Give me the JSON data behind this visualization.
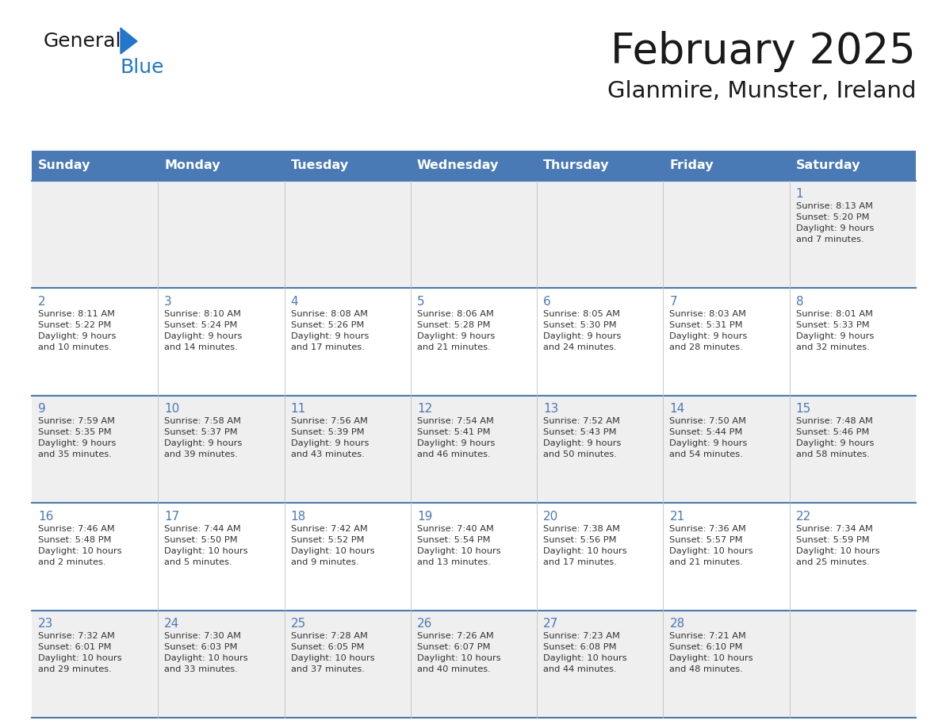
{
  "title": "February 2025",
  "subtitle": "Glanmire, Munster, Ireland",
  "days_of_week": [
    "Sunday",
    "Monday",
    "Tuesday",
    "Wednesday",
    "Thursday",
    "Friday",
    "Saturday"
  ],
  "header_bg": "#4a7ab5",
  "header_text": "#ffffff",
  "row_bg_light": "#efefef",
  "row_bg_white": "#ffffff",
  "day_text_color": "#4a7ab5",
  "info_text_color": "#333333",
  "grid_line_color": "#4a7ab5",
  "title_color": "#1a1a1a",
  "subtitle_color": "#1a1a1a",
  "logo_general_color": "#1a1a1a",
  "logo_blue_color": "#2277cc",
  "calendar_data": [
    [
      {
        "day": null,
        "info": null
      },
      {
        "day": null,
        "info": null
      },
      {
        "day": null,
        "info": null
      },
      {
        "day": null,
        "info": null
      },
      {
        "day": null,
        "info": null
      },
      {
        "day": null,
        "info": null
      },
      {
        "day": 1,
        "info": "Sunrise: 8:13 AM\nSunset: 5:20 PM\nDaylight: 9 hours\nand 7 minutes."
      }
    ],
    [
      {
        "day": 2,
        "info": "Sunrise: 8:11 AM\nSunset: 5:22 PM\nDaylight: 9 hours\nand 10 minutes."
      },
      {
        "day": 3,
        "info": "Sunrise: 8:10 AM\nSunset: 5:24 PM\nDaylight: 9 hours\nand 14 minutes."
      },
      {
        "day": 4,
        "info": "Sunrise: 8:08 AM\nSunset: 5:26 PM\nDaylight: 9 hours\nand 17 minutes."
      },
      {
        "day": 5,
        "info": "Sunrise: 8:06 AM\nSunset: 5:28 PM\nDaylight: 9 hours\nand 21 minutes."
      },
      {
        "day": 6,
        "info": "Sunrise: 8:05 AM\nSunset: 5:30 PM\nDaylight: 9 hours\nand 24 minutes."
      },
      {
        "day": 7,
        "info": "Sunrise: 8:03 AM\nSunset: 5:31 PM\nDaylight: 9 hours\nand 28 minutes."
      },
      {
        "day": 8,
        "info": "Sunrise: 8:01 AM\nSunset: 5:33 PM\nDaylight: 9 hours\nand 32 minutes."
      }
    ],
    [
      {
        "day": 9,
        "info": "Sunrise: 7:59 AM\nSunset: 5:35 PM\nDaylight: 9 hours\nand 35 minutes."
      },
      {
        "day": 10,
        "info": "Sunrise: 7:58 AM\nSunset: 5:37 PM\nDaylight: 9 hours\nand 39 minutes."
      },
      {
        "day": 11,
        "info": "Sunrise: 7:56 AM\nSunset: 5:39 PM\nDaylight: 9 hours\nand 43 minutes."
      },
      {
        "day": 12,
        "info": "Sunrise: 7:54 AM\nSunset: 5:41 PM\nDaylight: 9 hours\nand 46 minutes."
      },
      {
        "day": 13,
        "info": "Sunrise: 7:52 AM\nSunset: 5:43 PM\nDaylight: 9 hours\nand 50 minutes."
      },
      {
        "day": 14,
        "info": "Sunrise: 7:50 AM\nSunset: 5:44 PM\nDaylight: 9 hours\nand 54 minutes."
      },
      {
        "day": 15,
        "info": "Sunrise: 7:48 AM\nSunset: 5:46 PM\nDaylight: 9 hours\nand 58 minutes."
      }
    ],
    [
      {
        "day": 16,
        "info": "Sunrise: 7:46 AM\nSunset: 5:48 PM\nDaylight: 10 hours\nand 2 minutes."
      },
      {
        "day": 17,
        "info": "Sunrise: 7:44 AM\nSunset: 5:50 PM\nDaylight: 10 hours\nand 5 minutes."
      },
      {
        "day": 18,
        "info": "Sunrise: 7:42 AM\nSunset: 5:52 PM\nDaylight: 10 hours\nand 9 minutes."
      },
      {
        "day": 19,
        "info": "Sunrise: 7:40 AM\nSunset: 5:54 PM\nDaylight: 10 hours\nand 13 minutes."
      },
      {
        "day": 20,
        "info": "Sunrise: 7:38 AM\nSunset: 5:56 PM\nDaylight: 10 hours\nand 17 minutes."
      },
      {
        "day": 21,
        "info": "Sunrise: 7:36 AM\nSunset: 5:57 PM\nDaylight: 10 hours\nand 21 minutes."
      },
      {
        "day": 22,
        "info": "Sunrise: 7:34 AM\nSunset: 5:59 PM\nDaylight: 10 hours\nand 25 minutes."
      }
    ],
    [
      {
        "day": 23,
        "info": "Sunrise: 7:32 AM\nSunset: 6:01 PM\nDaylight: 10 hours\nand 29 minutes."
      },
      {
        "day": 24,
        "info": "Sunrise: 7:30 AM\nSunset: 6:03 PM\nDaylight: 10 hours\nand 33 minutes."
      },
      {
        "day": 25,
        "info": "Sunrise: 7:28 AM\nSunset: 6:05 PM\nDaylight: 10 hours\nand 37 minutes."
      },
      {
        "day": 26,
        "info": "Sunrise: 7:26 AM\nSunset: 6:07 PM\nDaylight: 10 hours\nand 40 minutes."
      },
      {
        "day": 27,
        "info": "Sunrise: 7:23 AM\nSunset: 6:08 PM\nDaylight: 10 hours\nand 44 minutes."
      },
      {
        "day": 28,
        "info": "Sunrise: 7:21 AM\nSunset: 6:10 PM\nDaylight: 10 hours\nand 48 minutes."
      },
      {
        "day": null,
        "info": null
      }
    ]
  ],
  "figw": 11.88,
  "figh": 9.18,
  "dpi": 100
}
